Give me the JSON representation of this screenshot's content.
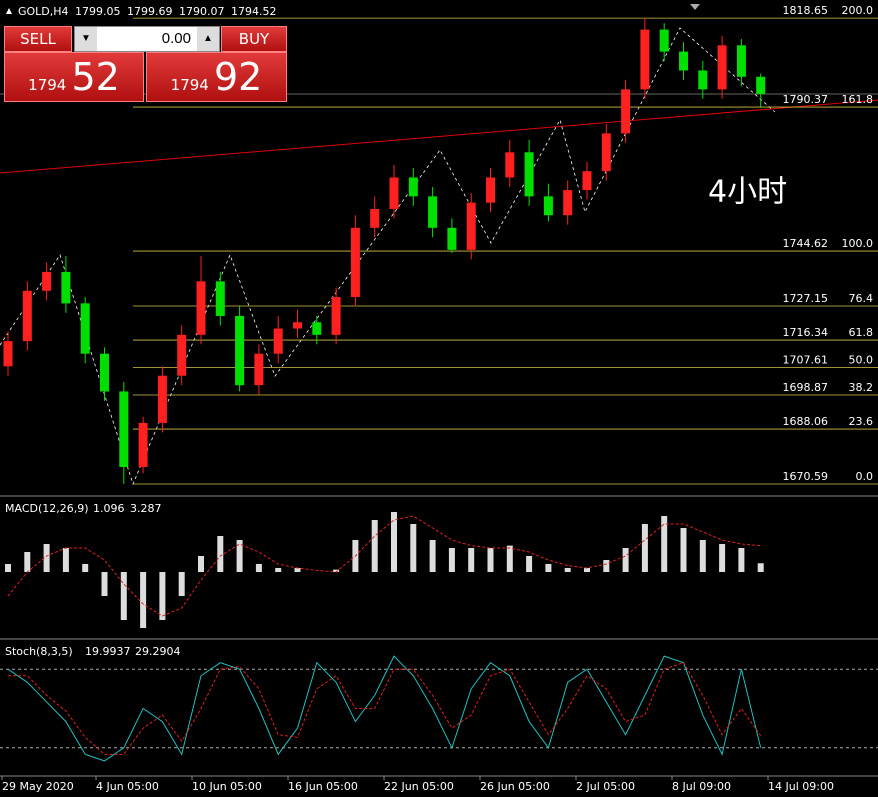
{
  "header": {
    "symbol": "GOLD,H4",
    "ohlc": [
      1799.05,
      1799.69,
      1790.07,
      1794.52
    ]
  },
  "trade_panel": {
    "sell": "SELL",
    "lot": "0.00",
    "buy": "BUY",
    "sell_big": "1794",
    "sell_small": "52",
    "buy_big": "1794",
    "buy_small": "92"
  },
  "overlay_label": "4小时",
  "price_chart": {
    "ylim": [
      1667.1,
      1824.4
    ],
    "bull_color": "#ff2020",
    "bear_color": "#00e000",
    "opens": [
      1708,
      1716,
      1732,
      1738,
      1728,
      1712,
      1700,
      1676,
      1690,
      1705,
      1718,
      1735,
      1724,
      1702,
      1712,
      1720,
      1722,
      1718,
      1730,
      1752,
      1758,
      1768,
      1762,
      1752,
      1745,
      1760,
      1768,
      1776,
      1762,
      1756,
      1764,
      1770,
      1782,
      1796,
      1815,
      1808,
      1802,
      1796,
      1810,
      1800
    ],
    "highs": [
      1719,
      1735,
      1741,
      1743,
      1730,
      1714,
      1703,
      1692,
      1708,
      1721,
      1743,
      1738,
      1727,
      1715,
      1724,
      1726,
      1724,
      1733,
      1756,
      1762,
      1772,
      1771,
      1765,
      1755,
      1763,
      1771,
      1780,
      1780,
      1766,
      1767,
      1773,
      1785,
      1799,
      1818.65,
      1817,
      1811,
      1805,
      1813,
      1812,
      1801
    ],
    "lows": [
      1705,
      1713,
      1729,
      1725,
      1709,
      1697,
      1670.59,
      1674,
      1687,
      1702,
      1715,
      1721,
      1700,
      1699,
      1709,
      1717,
      1715,
      1715,
      1727,
      1749,
      1755,
      1759,
      1749,
      1744,
      1742,
      1757,
      1765,
      1759,
      1754,
      1753,
      1761,
      1767,
      1779,
      1793,
      1805,
      1799,
      1793,
      1793,
      1797,
      1790.07
    ],
    "closes": [
      1716,
      1732,
      1738,
      1728,
      1712,
      1700,
      1676,
      1690,
      1705,
      1718,
      1735,
      1724,
      1702,
      1712,
      1720,
      1722,
      1718,
      1730,
      1752,
      1758,
      1768,
      1762,
      1752,
      1745,
      1760,
      1768,
      1776,
      1762,
      1756,
      1764,
      1770,
      1782,
      1796,
      1815,
      1808,
      1802,
      1796,
      1810,
      1800,
      1794.52
    ],
    "fib_levels": [
      {
        "price": 1818.65,
        "ratio": "200.0"
      },
      {
        "price": 1790.37,
        "ratio": "161.8"
      },
      {
        "price": 1744.62,
        "ratio": "100.0"
      },
      {
        "price": 1727.15,
        "ratio": "76.4"
      },
      {
        "price": 1716.34,
        "ratio": "61.8"
      },
      {
        "price": 1707.61,
        "ratio": "50.0"
      },
      {
        "price": 1698.87,
        "ratio": "38.2"
      },
      {
        "price": 1688.06,
        "ratio": "23.6"
      },
      {
        "price": 1670.59,
        "ratio": "0.0"
      }
    ]
  },
  "macd": {
    "title": "MACD(12,26,9)",
    "readings": [
      1.096,
      3.287
    ],
    "ylim": [
      -8,
      9
    ],
    "values": [
      1,
      2.5,
      3.5,
      3,
      1,
      -3,
      -6,
      -7,
      -6,
      -3,
      2,
      4.5,
      4,
      1,
      0.5,
      0.5,
      0,
      0.3,
      4,
      6.5,
      7.5,
      6,
      4,
      3,
      3,
      3,
      3.3,
      2,
      1,
      0.5,
      0.5,
      1.5,
      3,
      6,
      7,
      5.5,
      4,
      3.5,
      3,
      1.096
    ],
    "signal": [
      -3,
      0,
      2,
      3,
      3,
      1.5,
      -1.5,
      -4,
      -5.5,
      -4.5,
      -1,
      2,
      3.5,
      2.5,
      1,
      0.5,
      0.2,
      0,
      2,
      4.5,
      6.5,
      7,
      5.5,
      4,
      3.3,
      3,
      3,
      2.5,
      1.5,
      0.8,
      0.5,
      1,
      2,
      4,
      6,
      6,
      5,
      4,
      3.5,
      3.287
    ]
  },
  "stoch": {
    "title": "Stoch(8,3,5)",
    "readings": [
      19.9937,
      29.2904
    ],
    "ylim": [
      0,
      100
    ],
    "levels": [
      80,
      20
    ],
    "main": [
      80,
      70,
      55,
      40,
      15,
      10,
      20,
      50,
      40,
      15,
      75,
      85,
      80,
      50,
      15,
      35,
      85,
      70,
      40,
      60,
      90,
      75,
      50,
      20,
      65,
      85,
      75,
      40,
      20,
      70,
      80,
      55,
      30,
      60,
      90,
      85,
      45,
      15,
      80,
      19.9937
    ],
    "signal": [
      75,
      75,
      60,
      48,
      28,
      15,
      15,
      35,
      45,
      25,
      50,
      80,
      82,
      65,
      30,
      28,
      65,
      75,
      50,
      50,
      80,
      80,
      60,
      35,
      45,
      75,
      80,
      55,
      30,
      50,
      75,
      65,
      40,
      45,
      80,
      85,
      60,
      30,
      50,
      29.2904
    ]
  },
  "time_labels": [
    "29 May 2020",
    "4 Jun 05:00",
    "10 Jun 05:00",
    "16 Jun 05:00",
    "22 Jun 05:00",
    "26 Jun 05:00",
    "2 Jul 05:00",
    "8 Jul 09:00",
    "14 Jul 09:00"
  ]
}
